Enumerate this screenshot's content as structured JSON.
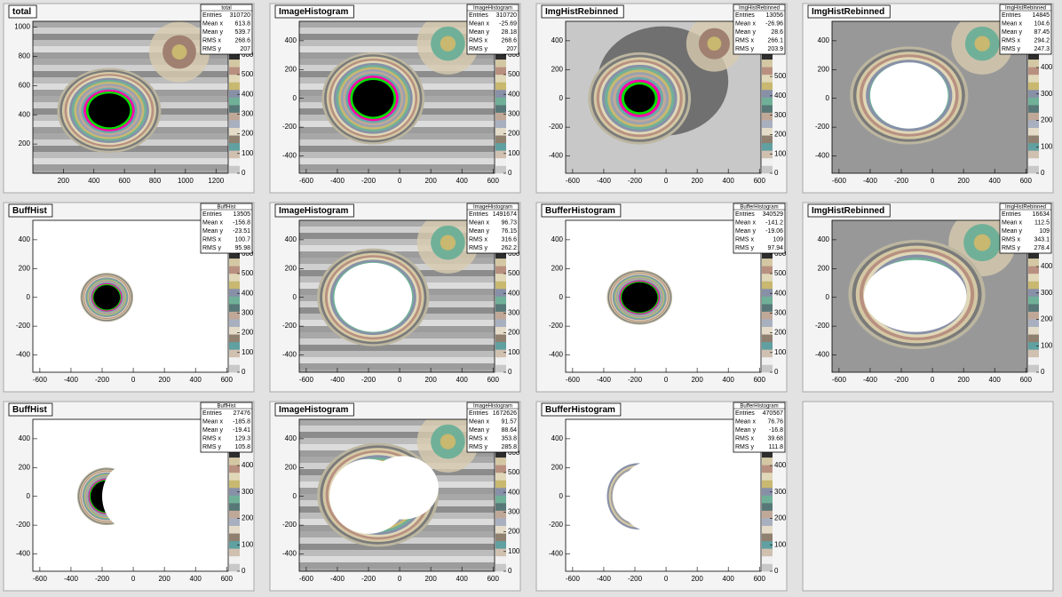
{
  "canvas": {
    "stats_labels": [
      "Entries",
      "Mean x",
      "Mean y",
      "RMS x",
      "RMS y"
    ],
    "pads": [
      {
        "title": "total",
        "stats": [
          310720,
          613.8,
          539.7,
          268.6,
          207
        ],
        "xlim": [
          0,
          1280
        ],
        "xticks": [
          200,
          400,
          600,
          800,
          1000,
          1200
        ],
        "ylim": [
          0,
          1040
        ],
        "yticks": [
          200,
          400,
          600,
          800,
          1000
        ],
        "zlim": [
          0,
          770
        ],
        "zticks": [
          0,
          100,
          200,
          300,
          400,
          500,
          600
        ]
      },
      {
        "title": "ImageHistogram",
        "stats": [
          310720,
          -25.69,
          28.18,
          268.6,
          207
        ],
        "xlim": [
          -645,
          610
        ],
        "xticks": [
          -600,
          -400,
          -200,
          0,
          200,
          400,
          600
        ],
        "ylim": [
          -520,
          535
        ],
        "yticks": [
          -400,
          -200,
          0,
          200,
          400
        ],
        "zlim": [
          0,
          770
        ],
        "zticks": [
          0,
          100,
          200,
          300,
          400,
          500,
          600
        ]
      },
      {
        "title": "ImgHistRebinned",
        "stats": [
          13056,
          -26.96,
          28.6,
          266.1,
          203.9
        ],
        "xlim": [
          -645,
          610
        ],
        "xticks": [
          -600,
          -400,
          -200,
          0,
          200,
          400,
          600
        ],
        "ylim": [
          -520,
          535
        ],
        "yticks": [
          -400,
          -200,
          0,
          200,
          400
        ],
        "zlim": [
          0,
          785
        ],
        "zticks": [
          0,
          100,
          200,
          300,
          400,
          500
        ]
      },
      {
        "title": "ImgHistRebinned",
        "stats": [
          14845,
          104.6,
          87.45,
          294.2,
          247.3
        ],
        "xlim": [
          -645,
          610
        ],
        "xticks": [
          -600,
          -400,
          -200,
          0,
          200,
          400,
          600
        ],
        "ylim": [
          -520,
          535
        ],
        "yticks": [
          -400,
          -200,
          0,
          200,
          400
        ],
        "zlim": [
          0,
          575
        ],
        "zticks": [
          0,
          100,
          200,
          300,
          400
        ]
      },
      {
        "title": "BuffHist",
        "stats": [
          13505,
          -156.8,
          -23.51,
          100.7,
          95.98
        ],
        "xlim": [
          -645,
          610
        ],
        "xticks": [
          -600,
          -400,
          -200,
          0,
          200,
          400,
          600
        ],
        "ylim": [
          -520,
          535
        ],
        "yticks": [
          -400,
          -200,
          0,
          200,
          400
        ],
        "zlim": [
          0,
          770
        ],
        "zticks": [
          0,
          100,
          200,
          300,
          400,
          500,
          600
        ]
      },
      {
        "title": "ImageHistogram",
        "stats": [
          1491674,
          96.73,
          76.15,
          316.6,
          262.2
        ],
        "xlim": [
          -645,
          610
        ],
        "xticks": [
          -600,
          -400,
          -200,
          0,
          200,
          400,
          600
        ],
        "ylim": [
          -520,
          535
        ],
        "yticks": [
          -400,
          -200,
          0,
          200,
          400
        ],
        "zlim": [
          0,
          770
        ],
        "zticks": [
          0,
          100,
          200,
          300,
          400,
          500,
          600
        ]
      },
      {
        "title": "BufferHistogram",
        "stats": [
          340529,
          -141.2,
          -19.06,
          109,
          97.94
        ],
        "xlim": [
          -645,
          610
        ],
        "xticks": [
          -600,
          -400,
          -200,
          0,
          200,
          400,
          600
        ],
        "ylim": [
          -520,
          535
        ],
        "yticks": [
          -400,
          -200,
          0,
          200,
          400
        ],
        "zlim": [
          0,
          770
        ],
        "zticks": [
          0,
          100,
          200,
          300,
          400,
          500,
          600
        ]
      },
      {
        "title": "ImgHistRebinned",
        "stats": [
          16634,
          112.5,
          109,
          343.1,
          278.4
        ],
        "xlim": [
          -645,
          610
        ],
        "xticks": [
          -600,
          -400,
          -200,
          0,
          200,
          400,
          600
        ],
        "ylim": [
          -520,
          535
        ],
        "yticks": [
          -400,
          -200,
          0,
          200,
          400
        ],
        "zlim": [
          0,
          575
        ],
        "zticks": [
          0,
          100,
          200,
          300,
          400
        ]
      },
      {
        "title": "BuffHist",
        "stats": [
          27476,
          -185.8,
          -19.41,
          129.3,
          105.8
        ],
        "xlim": [
          -645,
          610
        ],
        "xticks": [
          -600,
          -400,
          -200,
          0,
          200,
          400,
          600
        ],
        "ylim": [
          -520,
          535
        ],
        "yticks": [
          -400,
          -200,
          0,
          200,
          400
        ],
        "zlim": [
          0,
          575
        ],
        "zticks": [
          0,
          100,
          200,
          300,
          400
        ]
      },
      {
        "title": "ImageHistogram",
        "stats": [
          1672626,
          91.57,
          88.64,
          353.8,
          285.8
        ],
        "xlim": [
          -645,
          610
        ],
        "xticks": [
          -600,
          -400,
          -200,
          0,
          200,
          400,
          600
        ],
        "ylim": [
          -520,
          535
        ],
        "yticks": [
          -400,
          -200,
          0,
          200,
          400
        ],
        "zlim": [
          0,
          770
        ],
        "zticks": [
          0,
          100,
          200,
          300,
          400,
          500,
          600
        ]
      },
      {
        "title": "BufferHistogram",
        "stats": [
          470567,
          76.76,
          -16.8,
          39.68,
          111.8
        ],
        "xlim": [
          -645,
          610
        ],
        "xticks": [
          -600,
          -400,
          -200,
          0,
          200,
          400,
          600
        ],
        "ylim": [
          -520,
          535
        ],
        "yticks": [
          -400,
          -200,
          0,
          200,
          400
        ],
        "zlim": [
          0,
          575
        ],
        "zticks": [
          0,
          100,
          200,
          300,
          400
        ]
      }
    ]
  }
}
